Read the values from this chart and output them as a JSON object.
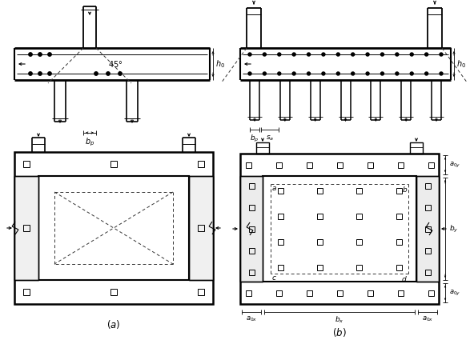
{
  "bg_color": "#ffffff",
  "lc": "#1a1a1a",
  "dc": "#444444",
  "fig_width": 5.87,
  "fig_height": 4.3,
  "dpi": 100
}
